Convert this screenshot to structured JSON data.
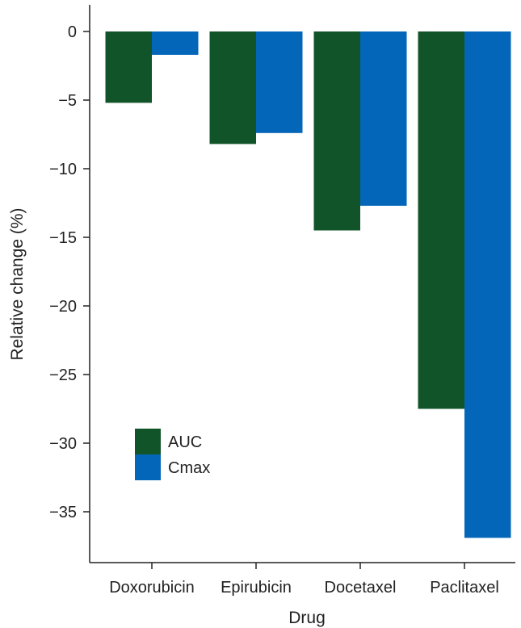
{
  "chart_data": {
    "type": "bar",
    "categories": [
      "Doxorubicin",
      "Epirubicin",
      "Docetaxel",
      "Paclitaxel"
    ],
    "series": [
      {
        "name": "AUC",
        "values": [
          -5.2,
          -8.2,
          -14.5,
          -27.5
        ],
        "color": "#12542a"
      },
      {
        "name": "Cmax",
        "values": [
          -1.7,
          -7.4,
          -12.7,
          -36.9
        ],
        "color": "#0466b8"
      }
    ],
    "xlabel": "Drug",
    "ylabel": "Relative change (%)",
    "ylim": [
      -38.5,
      2
    ],
    "yticks": [
      0,
      -5,
      -10,
      -15,
      -20,
      -25,
      -30,
      -35
    ],
    "ytick_labels": [
      "0",
      "−5",
      "−10",
      "−15",
      "−20",
      "−25",
      "−30",
      "−35"
    ],
    "grid": false,
    "legend_position": "lower-left"
  }
}
